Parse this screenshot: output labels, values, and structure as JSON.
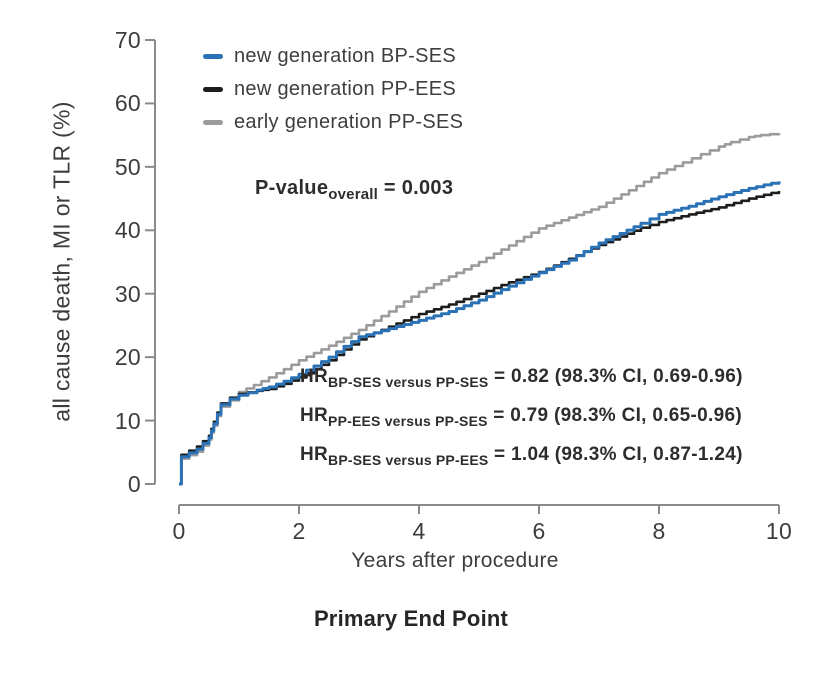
{
  "figure": {
    "caption": "Primary End Point",
    "pvalue": {
      "prefix": "P-value",
      "sub": "overall",
      "value": " = 0.003"
    },
    "hr": [
      {
        "prefix": "HR",
        "sub": "BP-SES versus PP-SES",
        "value": " = 0.82 (98.3% CI, 0.69-0.96)"
      },
      {
        "prefix": "HR",
        "sub": "PP-EES versus PP-SES",
        "value": " = 0.79 (98.3% CI, 0.65-0.96)"
      },
      {
        "prefix": "HR",
        "sub": "BP-SES versus PP-EES",
        "value": " = 1.04 (98.3% CI, 0.87-1.24)"
      }
    ],
    "legend": [
      {
        "label": "new generation BP-SES"
      },
      {
        "label": "new generation PP-EES"
      },
      {
        "label": "early generation PP-SES"
      }
    ],
    "colors": {
      "axis": "#8a8a8a",
      "tick_text": "#3d3d3c"
    }
  },
  "chart_data": {
    "type": "line",
    "line_style": "step",
    "title": "Primary End Point",
    "xlabel": "Years after procedure",
    "ylabel": "all cause death, MI or TLR (%)",
    "xlim": [
      0,
      10
    ],
    "ylim": [
      0,
      70
    ],
    "xticks": [
      0,
      2,
      4,
      6,
      8,
      10
    ],
    "yticks": [
      0,
      10,
      20,
      30,
      40,
      50,
      60,
      70
    ],
    "grid": false,
    "legend_position": "upper-left-inside",
    "annotations": [
      "P-value overall = 0.003",
      "HR BP-SES versus PP-SES = 0.82 (98.3% CI, 0.69-0.96)",
      "HR PP-EES versus PP-SES = 0.79 (98.3% CI, 0.65-0.96)",
      "HR BP-SES versus PP-EES = 1.04 (98.3% CI, 0.87-1.24)"
    ],
    "series": [
      {
        "name": "new generation BP-SES",
        "color": "#2a72b5",
        "x": [
          0,
          0.04,
          0.3,
          0.5,
          0.58,
          0.7,
          0.85,
          1,
          1.3,
          1.5,
          1.75,
          2,
          2.25,
          2.5,
          2.75,
          3,
          3.5,
          4,
          4.5,
          5,
          5.5,
          6,
          6.5,
          7,
          7.35,
          7.7,
          8,
          8.5,
          9,
          9.5,
          10
        ],
        "y": [
          0,
          4.3,
          5.5,
          7.3,
          9.5,
          12.5,
          13.4,
          14,
          14.8,
          15.3,
          16.2,
          17.3,
          18.6,
          20,
          21.7,
          23.2,
          24.5,
          25.8,
          27.2,
          29,
          31.2,
          33.3,
          35.3,
          38,
          39.5,
          41.1,
          42.5,
          43.8,
          45.3,
          46.6,
          47.7
        ]
      },
      {
        "name": "new generation PP-EES",
        "color": "#1d1d1b",
        "x": [
          0,
          0.04,
          0.3,
          0.5,
          0.58,
          0.7,
          0.85,
          1,
          1.3,
          1.5,
          1.75,
          2,
          2.25,
          2.5,
          2.75,
          3,
          3.5,
          4,
          4.5,
          5,
          5.5,
          6,
          6.5,
          7,
          7.35,
          7.7,
          8,
          8.5,
          9,
          9.5,
          10
        ],
        "y": [
          0,
          4.6,
          5.9,
          7.6,
          9.8,
          12.7,
          13.6,
          14.2,
          14.7,
          15,
          15.8,
          16.8,
          18.1,
          19.5,
          21.2,
          22.8,
          24.8,
          26.8,
          28.3,
          30,
          31.8,
          33.4,
          35.5,
          37.7,
          39,
          40.4,
          41.3,
          42.5,
          43.6,
          45,
          46.2
        ]
      },
      {
        "name": "early generation PP-SES",
        "color": "#9b9b9b",
        "x": [
          0,
          0.04,
          0.3,
          0.5,
          0.58,
          0.7,
          0.85,
          1,
          1.25,
          1.5,
          1.75,
          2,
          2.5,
          3,
          3.5,
          4,
          4.5,
          5,
          5.5,
          6,
          6.5,
          7,
          7.5,
          8,
          8.4,
          8.7,
          9,
          9.2,
          9.5,
          9.7,
          10
        ],
        "y": [
          0,
          4,
          5.1,
          7,
          9.2,
          12.2,
          13.2,
          14.5,
          15.6,
          16.8,
          18.1,
          19.5,
          21.8,
          24.3,
          27.2,
          30.3,
          32.7,
          35,
          37.6,
          40.3,
          42,
          43.7,
          46.3,
          49,
          50.7,
          52,
          53.2,
          53.9,
          54.7,
          55,
          55.3
        ]
      }
    ]
  }
}
